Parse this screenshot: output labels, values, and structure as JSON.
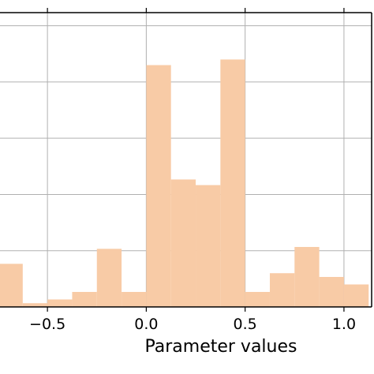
{
  "chart_data": {
    "type": "bar",
    "xlabel": "Parameter values",
    "ylabel": "",
    "title": "",
    "xlim": [
      -0.74,
      1.14
    ],
    "ylim": [
      0,
      15.7
    ],
    "grid": true,
    "bar_color": "#f8cba6",
    "grid_color": "#b0b0b0",
    "x_ticks": [
      -0.5,
      0.0,
      0.5,
      1.0
    ],
    "x_tick_labels": [
      "−0.5",
      "0.0",
      "0.5",
      "1.0"
    ],
    "y_gridlines": [
      3,
      6,
      9,
      12,
      15
    ],
    "bins": [
      {
        "x0": -0.75,
        "x1": -0.625,
        "value": 2.3
      },
      {
        "x0": -0.625,
        "x1": -0.5,
        "value": 0.2
      },
      {
        "x0": -0.5,
        "x1": -0.375,
        "value": 0.4
      },
      {
        "x0": -0.375,
        "x1": -0.25,
        "value": 0.8
      },
      {
        "x0": -0.25,
        "x1": -0.125,
        "value": 3.1
      },
      {
        "x0": -0.125,
        "x1": 0.0,
        "value": 0.8
      },
      {
        "x0": 0.0,
        "x1": 0.125,
        "value": 12.9
      },
      {
        "x0": 0.125,
        "x1": 0.25,
        "value": 6.8
      },
      {
        "x0": 0.25,
        "x1": 0.375,
        "value": 6.5
      },
      {
        "x0": 0.375,
        "x1": 0.5,
        "value": 13.2
      },
      {
        "x0": 0.5,
        "x1": 0.625,
        "value": 0.8
      },
      {
        "x0": 0.625,
        "x1": 0.75,
        "value": 1.8
      },
      {
        "x0": 0.75,
        "x1": 0.875,
        "value": 3.2
      },
      {
        "x0": 0.875,
        "x1": 1.0,
        "value": 1.6
      },
      {
        "x0": 1.0,
        "x1": 1.125,
        "value": 1.2
      }
    ]
  }
}
